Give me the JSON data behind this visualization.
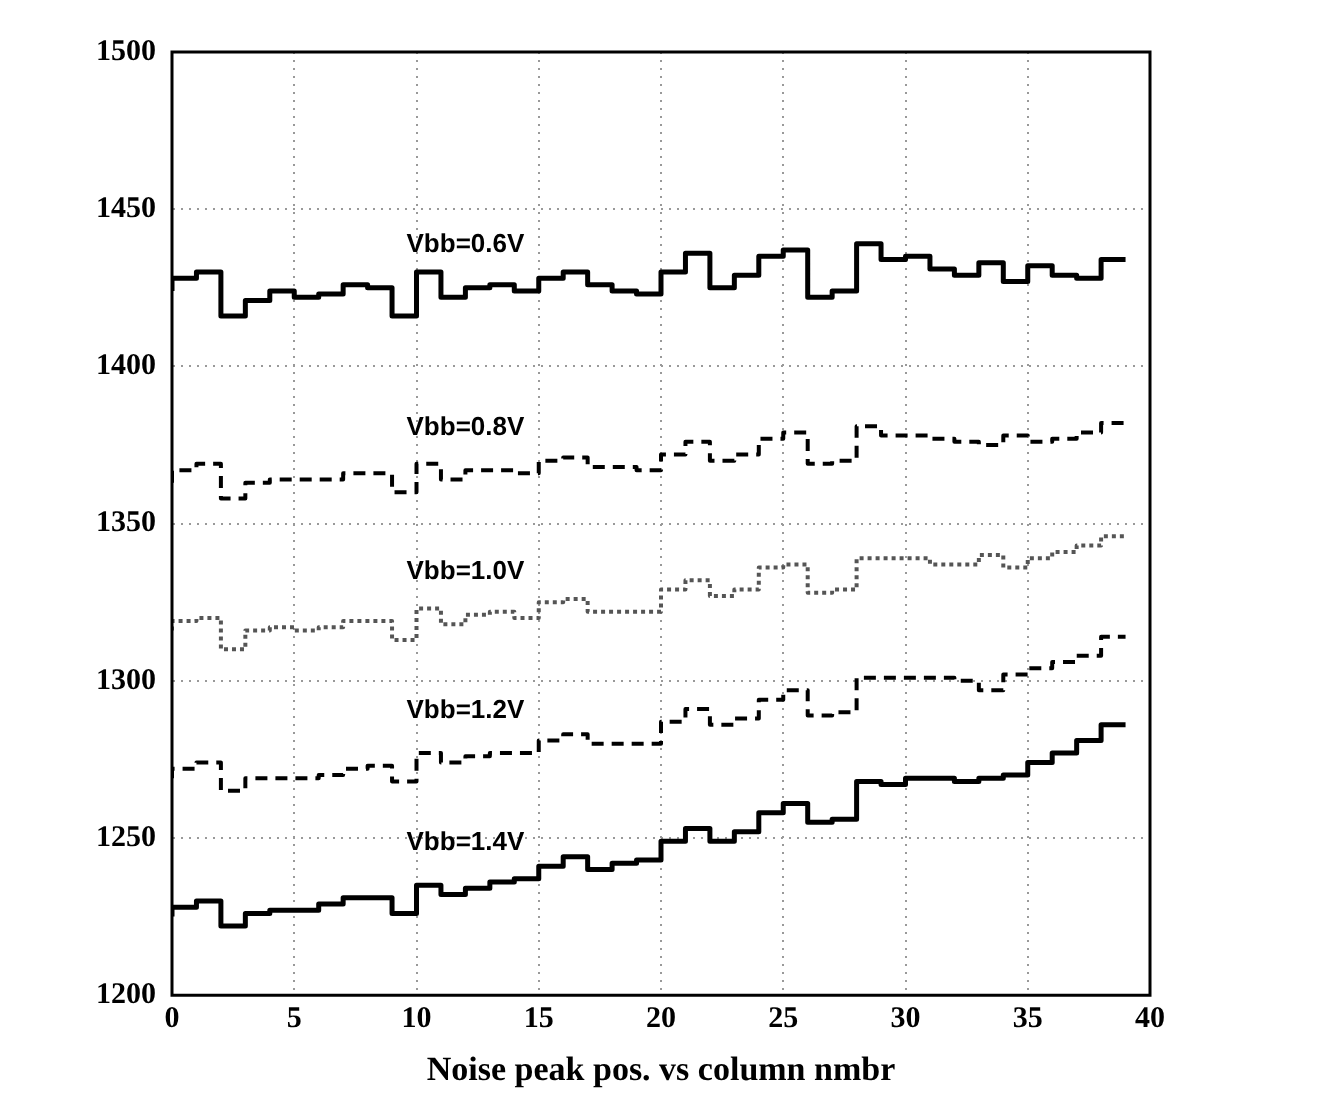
{
  "chart_data": {
    "type": "step",
    "xlabel": "Noise peak pos. vs column nmbr",
    "x": [
      0,
      1,
      2,
      3,
      4,
      5,
      6,
      7,
      8,
      9,
      10,
      11,
      12,
      13,
      14,
      15,
      16,
      17,
      18,
      19,
      20,
      21,
      22,
      23,
      24,
      25,
      26,
      27,
      28,
      29,
      30,
      31,
      32,
      33,
      34,
      35,
      36,
      37,
      38,
      39
    ],
    "series": [
      {
        "name": "Vbb=0.6V",
        "color": "#000000",
        "line_style": "solid",
        "values": [
          1424,
          1428,
          1430,
          1416,
          1421,
          1424,
          1422,
          1423,
          1426,
          1425,
          1416,
          1430,
          1422,
          1425,
          1426,
          1424,
          1428,
          1430,
          1426,
          1424,
          1423,
          1430,
          1436,
          1425,
          1429,
          1435,
          1437,
          1422,
          1424,
          1439,
          1434,
          1435,
          1431,
          1429,
          1433,
          1427,
          1432,
          1429,
          1428,
          1434
        ]
      },
      {
        "name": "Vbb=0.8V",
        "color": "#000000",
        "line_style": "dashed",
        "values": [
          1363,
          1367,
          1369,
          1358,
          1363,
          1364,
          1364,
          1364,
          1366,
          1366,
          1360,
          1369,
          1364,
          1367,
          1367,
          1366,
          1370,
          1371,
          1368,
          1368,
          1367,
          1372,
          1376,
          1370,
          1372,
          1377,
          1379,
          1369,
          1370,
          1381,
          1378,
          1378,
          1377,
          1376,
          1375,
          1378,
          1376,
          1377,
          1379,
          1382
        ]
      },
      {
        "name": "Vbb=1.0V",
        "color": "#555555",
        "line_style": "dotted",
        "values": [
          1316,
          1319,
          1320,
          1310,
          1316,
          1317,
          1316,
          1317,
          1319,
          1319,
          1313,
          1323,
          1318,
          1321,
          1322,
          1320,
          1325,
          1326,
          1322,
          1322,
          1322,
          1329,
          1332,
          1327,
          1329,
          1336,
          1337,
          1328,
          1329,
          1339,
          1339,
          1339,
          1337,
          1337,
          1340,
          1336,
          1339,
          1341,
          1343,
          1346
        ]
      },
      {
        "name": "Vbb=1.2V",
        "color": "#000000",
        "line_style": "dashed",
        "values": [
          1269,
          1272,
          1274,
          1265,
          1269,
          1269,
          1269,
          1270,
          1272,
          1273,
          1268,
          1277,
          1274,
          1276,
          1277,
          1277,
          1281,
          1283,
          1280,
          1280,
          1280,
          1287,
          1291,
          1286,
          1288,
          1294,
          1297,
          1289,
          1290,
          1301,
          1301,
          1301,
          1301,
          1300,
          1297,
          1302,
          1304,
          1306,
          1308,
          1314
        ]
      },
      {
        "name": "Vbb=1.4V",
        "color": "#000000",
        "line_style": "solid",
        "values": [
          1225,
          1228,
          1230,
          1222,
          1226,
          1227,
          1227,
          1229,
          1231,
          1231,
          1226,
          1235,
          1232,
          1234,
          1236,
          1237,
          1241,
          1244,
          1240,
          1242,
          1243,
          1249,
          1253,
          1249,
          1252,
          1258,
          1261,
          1255,
          1256,
          1268,
          1267,
          1269,
          1269,
          1268,
          1269,
          1270,
          1274,
          1277,
          1281,
          1286
        ]
      }
    ],
    "xlim": [
      0,
      40
    ],
    "xticks": [
      0,
      5,
      10,
      15,
      20,
      25,
      30,
      35,
      40
    ],
    "ylim": [
      1200,
      1500
    ],
    "yticks": [
      1200,
      1250,
      1300,
      1350,
      1400,
      1450,
      1500
    ],
    "grid": true,
    "legend": false
  }
}
